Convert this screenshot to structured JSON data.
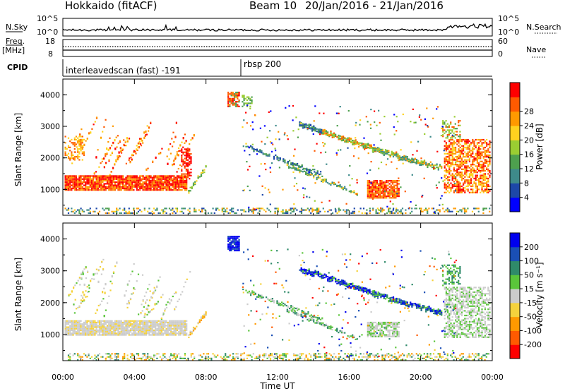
{
  "header": {
    "station": "Hokkaido (fitACF)",
    "beam": "Beam 10",
    "date_range": "20/Jan/2016 - 21/Jan/2016"
  },
  "strips": {
    "nsky_label": "N.Sky",
    "nsky_ticks": [
      "10^5",
      "10^0"
    ],
    "nsearch_label": "N.Search",
    "nsearch_ticks": [
      "10^5",
      "10^0"
    ],
    "freq_label_top": "Freq.",
    "freq_label_unit": "[MHz]",
    "freq_ticks": [
      "18",
      "8"
    ],
    "nave_label": "Nave",
    "nave_ticks": [
      "60",
      "0"
    ],
    "cpid_label": "CPID",
    "cpid_modes": [
      {
        "text": "interleavedscan (fast) -191",
        "start_hour": 0
      },
      {
        "text": "rbsp 200",
        "start_hour": 10
      }
    ]
  },
  "chart_data": [
    {
      "type": "heatmap",
      "quantity": "Power",
      "ylabel": "Slant Range [km]",
      "ylim": [
        180,
        4500
      ],
      "yticks": [
        "1000",
        "2000",
        "3000",
        "4000"
      ],
      "xlim_hours": [
        0,
        24
      ],
      "colorbar": {
        "label": "Power [dB]",
        "range": [
          0,
          32
        ],
        "ticks": [
          "4",
          "8",
          "12",
          "16",
          "20",
          "24",
          "28"
        ],
        "colors": [
          "#0000ff",
          "#1d47a8",
          "#3e8a8a",
          "#4ea04e",
          "#9acd32",
          "#ffd21f",
          "#ff9900",
          "#ff5a00",
          "#ff0000"
        ]
      }
    },
    {
      "type": "heatmap",
      "quantity": "Velocity",
      "ylabel": "Slant Range [km]",
      "ylim": [
        180,
        4500
      ],
      "yticks": [
        "1000",
        "2000",
        "3000",
        "4000"
      ],
      "xlim_hours": [
        0,
        24
      ],
      "colorbar": {
        "label": "Velocity [m s⁻¹]",
        "ticks": [
          "200",
          "100",
          "50",
          "15",
          "-15",
          "-50",
          "-100",
          "-200"
        ],
        "colors": [
          "#0000ee",
          "#1a4fb5",
          "#2f8a6a",
          "#5ac53a",
          "#cccccc",
          "#f5d23c",
          "#ff9900",
          "#ff5a00",
          "#ff0000"
        ]
      }
    }
  ],
  "xaxis": {
    "ticks": [
      "00:00",
      "04:00",
      "08:00",
      "12:00",
      "16:00",
      "20:00",
      "00:00"
    ],
    "label": "Time UT"
  }
}
